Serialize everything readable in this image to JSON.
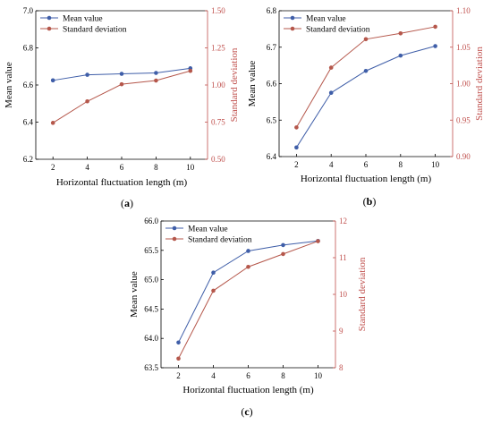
{
  "colors": {
    "mean": "#3f5ea8",
    "sd": "#b5574b",
    "axis": "#000000",
    "sd_axis": "#c0504d"
  },
  "chart_data": [
    {
      "id": "a",
      "type": "line",
      "panel_label": "(a)",
      "xlabel": "Horizontal fluctuation length (m)",
      "ylabel_left": "Mean value",
      "ylabel_right": "Standard deviation",
      "x": [
        2,
        4,
        6,
        8,
        10
      ],
      "xticks": [
        "2",
        "4",
        "6",
        "8",
        "10"
      ],
      "xlim": [
        1,
        11
      ],
      "ylim_left": [
        6.2,
        7.0
      ],
      "yticks_left": [
        "6.2",
        "6.4",
        "6.6",
        "6.8",
        "7.0"
      ],
      "ylim_right": [
        0.5,
        1.5
      ],
      "yticks_right": [
        "0.50",
        "0.75",
        "1.00",
        "1.25",
        "1.50"
      ],
      "legend": [
        "Mean value",
        "Standard deviation"
      ],
      "legend_position": "top-left",
      "series": [
        {
          "name": "Mean value",
          "axis": "left",
          "values": [
            6.625,
            6.655,
            6.66,
            6.665,
            6.69
          ]
        },
        {
          "name": "Standard deviation",
          "axis": "right",
          "values": [
            0.745,
            0.89,
            1.005,
            1.03,
            1.095
          ]
        }
      ]
    },
    {
      "id": "b",
      "type": "line",
      "panel_label": "(b)",
      "xlabel": "Horizontal fluctuation length (m)",
      "ylabel_left": "Mean value",
      "ylabel_right": "Standard deviation",
      "x": [
        2,
        4,
        6,
        8,
        10
      ],
      "xticks": [
        "2",
        "4",
        "6",
        "8",
        "10"
      ],
      "xlim": [
        1,
        11
      ],
      "ylim_left": [
        6.4,
        6.8
      ],
      "yticks_left": [
        "6.4",
        "6.5",
        "6.6",
        "6.7",
        "6.8"
      ],
      "ylim_right": [
        0.9,
        1.1
      ],
      "yticks_right": [
        "0.90",
        "0.95",
        "1.00",
        "1.05",
        "1.10"
      ],
      "legend": [
        "Mean value",
        "Standard deviation"
      ],
      "legend_position": "top-left",
      "series": [
        {
          "name": "Mean value",
          "axis": "left",
          "values": [
            6.425,
            6.575,
            6.635,
            6.677,
            6.703
          ]
        },
        {
          "name": "Standard deviation",
          "axis": "right",
          "values": [
            0.94,
            1.022,
            1.061,
            1.069,
            1.078
          ]
        }
      ]
    },
    {
      "id": "c",
      "type": "line",
      "panel_label": "(c)",
      "xlabel": "Horizontal fluctuation length (m)",
      "ylabel_left": "Mean value",
      "ylabel_right": "Standard deviation",
      "x": [
        2,
        4,
        6,
        8,
        10
      ],
      "xticks": [
        "2",
        "4",
        "6",
        "8",
        "10"
      ],
      "xlim": [
        1,
        11
      ],
      "ylim_left": [
        63.5,
        66.0
      ],
      "yticks_left": [
        "63.5",
        "64.0",
        "64.5",
        "65.0",
        "65.5",
        "66.0"
      ],
      "ylim_right": [
        8,
        12
      ],
      "yticks_right": [
        "8",
        "9",
        "10",
        "11",
        "12"
      ],
      "legend": [
        "Mean value",
        "Standard deviation"
      ],
      "legend_position": "top-left",
      "series": [
        {
          "name": "Mean value",
          "axis": "left",
          "values": [
            63.93,
            65.12,
            65.49,
            65.59,
            65.66
          ]
        },
        {
          "name": "Standard deviation",
          "axis": "right",
          "values": [
            8.25,
            10.1,
            10.75,
            11.1,
            11.45
          ]
        }
      ]
    }
  ]
}
